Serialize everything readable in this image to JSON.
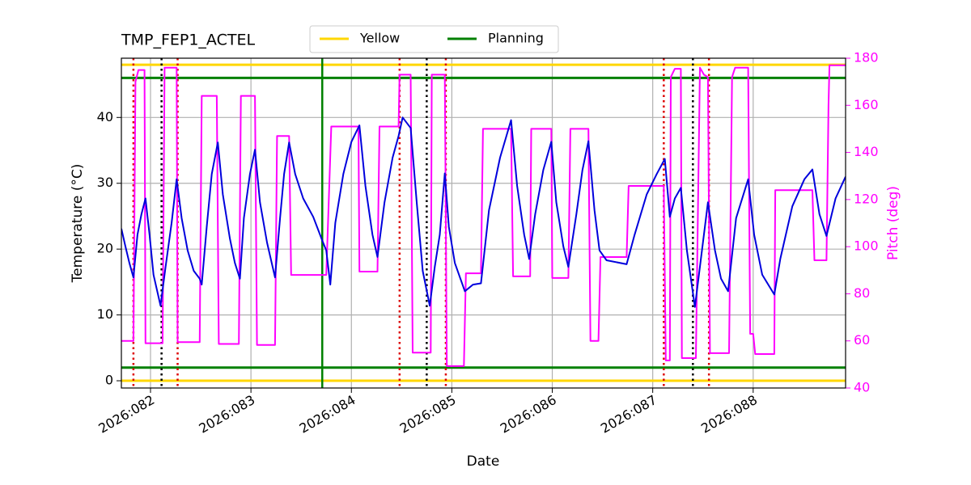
{
  "chart_data": {
    "type": "line",
    "title": "TMP_FEP1_ACTEL",
    "x_label": "Date",
    "y_label": "Temperature (°C)",
    "y2_label": "Pitch (deg)",
    "xlim": [
      81.71,
      88.92
    ],
    "ylim": [
      -1.1,
      49
    ],
    "y2lim": [
      40,
      180
    ],
    "xticks": [
      {
        "value": 82,
        "label": "2026:082"
      },
      {
        "value": 83,
        "label": "2026:083"
      },
      {
        "value": 84,
        "label": "2026:084"
      },
      {
        "value": 85,
        "label": "2026:085"
      },
      {
        "value": 86,
        "label": "2026:086"
      },
      {
        "value": 87,
        "label": "2026:087"
      },
      {
        "value": 88,
        "label": "2026:088"
      }
    ],
    "yticks": [
      0,
      10,
      20,
      30,
      40
    ],
    "y2ticks": [
      40,
      60,
      80,
      100,
      120,
      140,
      160,
      180
    ],
    "grid": true,
    "temperature": {
      "color": "#0000dd",
      "x": [
        81.71,
        81.75,
        81.79,
        81.83,
        81.87,
        81.91,
        81.95,
        81.99,
        82.03,
        82.1,
        82.15,
        82.21,
        82.26,
        82.31,
        82.37,
        82.43,
        82.49,
        82.51,
        82.56,
        82.61,
        82.67,
        82.72,
        82.79,
        82.84,
        82.89,
        82.93,
        82.99,
        83.04,
        83.09,
        83.16,
        83.24,
        83.29,
        83.33,
        83.38,
        83.44,
        83.52,
        83.62,
        83.71,
        83.75,
        83.79,
        83.84,
        83.92,
        84.0,
        84.08,
        84.14,
        84.21,
        84.26,
        84.33,
        84.41,
        84.47,
        84.51,
        84.59,
        84.65,
        84.71,
        84.78,
        84.83,
        84.88,
        84.93,
        84.97,
        85.03,
        85.13,
        85.21,
        85.29,
        85.37,
        85.48,
        85.59,
        85.65,
        85.72,
        85.77,
        85.83,
        85.91,
        85.99,
        86.04,
        86.11,
        86.16,
        86.24,
        86.3,
        86.36,
        86.42,
        86.47,
        86.54,
        86.74,
        86.82,
        86.94,
        87.04,
        87.12,
        87.17,
        87.22,
        87.28,
        87.34,
        87.42,
        87.48,
        87.55,
        87.62,
        87.68,
        87.75,
        87.83,
        87.95,
        88.01,
        88.09,
        88.21,
        88.27,
        88.39,
        88.51,
        88.59,
        88.66,
        88.73,
        88.82,
        88.92
      ],
      "values": [
        23.1,
        20.4,
        17.9,
        15.7,
        22.2,
        25.3,
        27.7,
        22.2,
        16.1,
        11.4,
        17.3,
        24.0,
        30.6,
        24.7,
        19.8,
        16.7,
        15.5,
        14.6,
        23.4,
        31.4,
        36.2,
        28.3,
        21.6,
        17.9,
        15.5,
        24.7,
        31.4,
        35.1,
        27.1,
        21.0,
        15.7,
        24.7,
        31.4,
        36.2,
        31.4,
        27.7,
        24.9,
        21.3,
        19.8,
        14.6,
        24.0,
        31.4,
        36.3,
        38.8,
        29.6,
        22.2,
        18.8,
        27.1,
        33.9,
        37.2,
        40.0,
        38.4,
        27.1,
        16.7,
        11.4,
        17.3,
        22.2,
        31.5,
        23.4,
        17.9,
        13.6,
        14.6,
        14.8,
        25.9,
        33.9,
        39.6,
        29.6,
        22.2,
        18.5,
        25.3,
        32.0,
        36.3,
        27.1,
        20.4,
        17.3,
        25.3,
        32.0,
        36.4,
        25.9,
        19.8,
        18.3,
        17.7,
        22.2,
        28.3,
        31.4,
        33.7,
        24.9,
        27.7,
        29.3,
        19.8,
        11.2,
        18.5,
        27.1,
        19.8,
        15.5,
        13.6,
        24.7,
        30.6,
        22.2,
        16.1,
        13.1,
        18.5,
        26.5,
        30.6,
        32.1,
        25.3,
        22.0,
        27.7,
        31.0
      ]
    },
    "pitch": {
      "color": "#ff00ff",
      "axis": "y2",
      "x": [
        81.71,
        81.83,
        81.85,
        81.88,
        81.94,
        81.95,
        82.12,
        82.14,
        82.26,
        82.27,
        82.49,
        82.51,
        82.66,
        82.68,
        82.88,
        82.9,
        83.04,
        83.06,
        83.24,
        83.26,
        83.38,
        83.4,
        83.75,
        83.8,
        84.07,
        84.08,
        84.26,
        84.28,
        84.47,
        84.48,
        84.59,
        84.61,
        84.79,
        84.8,
        84.93,
        84.95,
        85.12,
        85.14,
        85.29,
        85.31,
        85.59,
        85.61,
        85.78,
        85.79,
        85.99,
        86.0,
        86.16,
        86.18,
        86.36,
        86.38,
        86.46,
        86.48,
        86.74,
        86.76,
        87.11,
        87.13,
        87.17,
        87.18,
        87.22,
        87.28,
        87.29,
        87.43,
        87.47,
        87.51,
        87.55,
        87.57,
        87.76,
        87.79,
        87.82,
        87.95,
        87.97,
        88.0,
        88.02,
        88.21,
        88.22,
        88.59,
        88.61,
        88.73,
        88.75,
        88.76,
        88.92
      ],
      "values": [
        60,
        60,
        170,
        175,
        175,
        59,
        59,
        176,
        176,
        59.5,
        59.5,
        164,
        164,
        58.7,
        58.7,
        164,
        164,
        58.3,
        58.3,
        147,
        147,
        88,
        88,
        151,
        151,
        89.4,
        89.4,
        151,
        151,
        173,
        173,
        55,
        55,
        173,
        173,
        49.3,
        49.3,
        88.7,
        88.7,
        150,
        150,
        87.4,
        87.4,
        150,
        150,
        86.7,
        86.7,
        150,
        150,
        60,
        60,
        95.6,
        95.6,
        125.8,
        125.8,
        51.7,
        51.7,
        172,
        175.5,
        175.5,
        52.7,
        52.7,
        176,
        173,
        172,
        54.8,
        54.8,
        172,
        176,
        176,
        63,
        63,
        54.4,
        54.4,
        124,
        124,
        94.2,
        94.2,
        160,
        177,
        177
      ]
    },
    "limits": [
      {
        "name": "Yellow",
        "color": "#ffd700",
        "values": [
          0,
          48
        ]
      },
      {
        "name": "Planning",
        "color": "#008000",
        "values": [
          2,
          46
        ]
      }
    ],
    "vlines": [
      {
        "color": "#008000",
        "dotted": false,
        "x": [
          83.71
        ]
      },
      {
        "color": "#dd0000",
        "dotted": true,
        "x": [
          81.83,
          82.27,
          84.48,
          84.94,
          87.11,
          87.56
        ]
      },
      {
        "color": "#000000",
        "dotted": true,
        "x": [
          82.11,
          84.75,
          87.4
        ]
      }
    ]
  }
}
